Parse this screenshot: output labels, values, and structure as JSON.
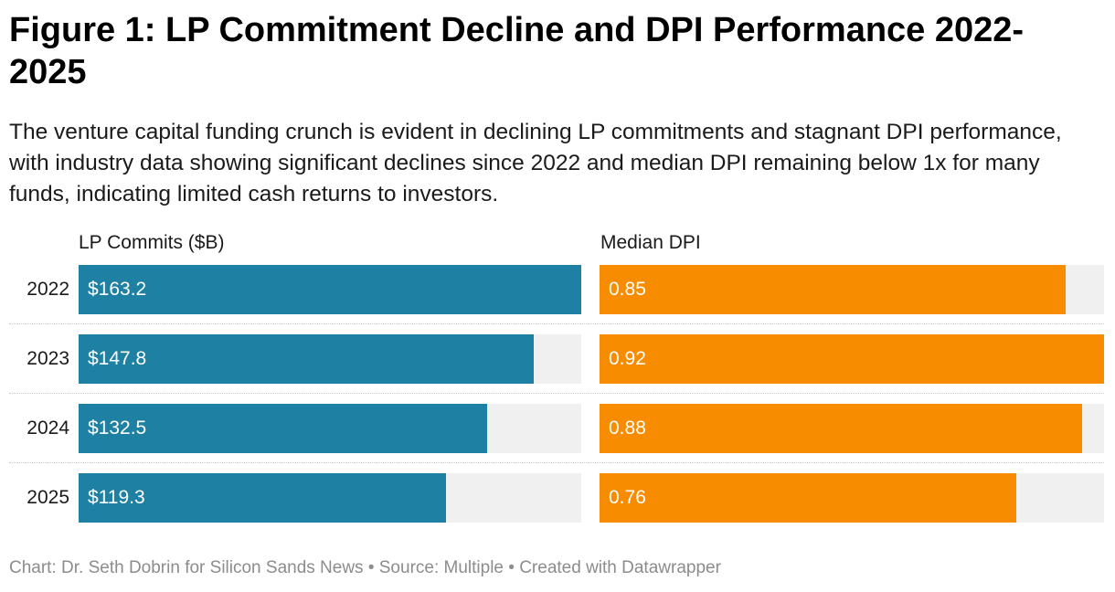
{
  "title": "Figure 1: LP Commitment Decline and DPI Performance 2022-2025",
  "subtitle": "The venture capital funding crunch is evident in declining LP commitments and stagnant DPI performance, with industry data showing significant declines since 2022 and median DPI remaining below 1x for many funds, indicating limited cash returns to investors.",
  "footer": "Chart: Dr. Seth Dobrin for Silicon Sands News • Source: Multiple • Created with Datawrapper",
  "colors": {
    "lp_bar": "#1e81a3",
    "dpi_bar": "#f88c00",
    "track": "#f0f0f0"
  },
  "chart_data": {
    "type": "bar",
    "orientation": "horizontal",
    "categories": [
      "2022",
      "2023",
      "2024",
      "2025"
    ],
    "series": [
      {
        "name": "LP Commits ($B)",
        "values": [
          163.2,
          147.8,
          132.5,
          119.3
        ],
        "labels": [
          "$163.2",
          "$147.8",
          "$132.5",
          "$119.3"
        ],
        "xlim": [
          0,
          163.2
        ]
      },
      {
        "name": "Median DPI",
        "values": [
          0.85,
          0.92,
          0.88,
          0.76
        ],
        "labels": [
          "0.85",
          "0.92",
          "0.88",
          "0.76"
        ],
        "xlim": [
          0,
          0.92
        ]
      }
    ],
    "grid": false,
    "legend": "none"
  }
}
